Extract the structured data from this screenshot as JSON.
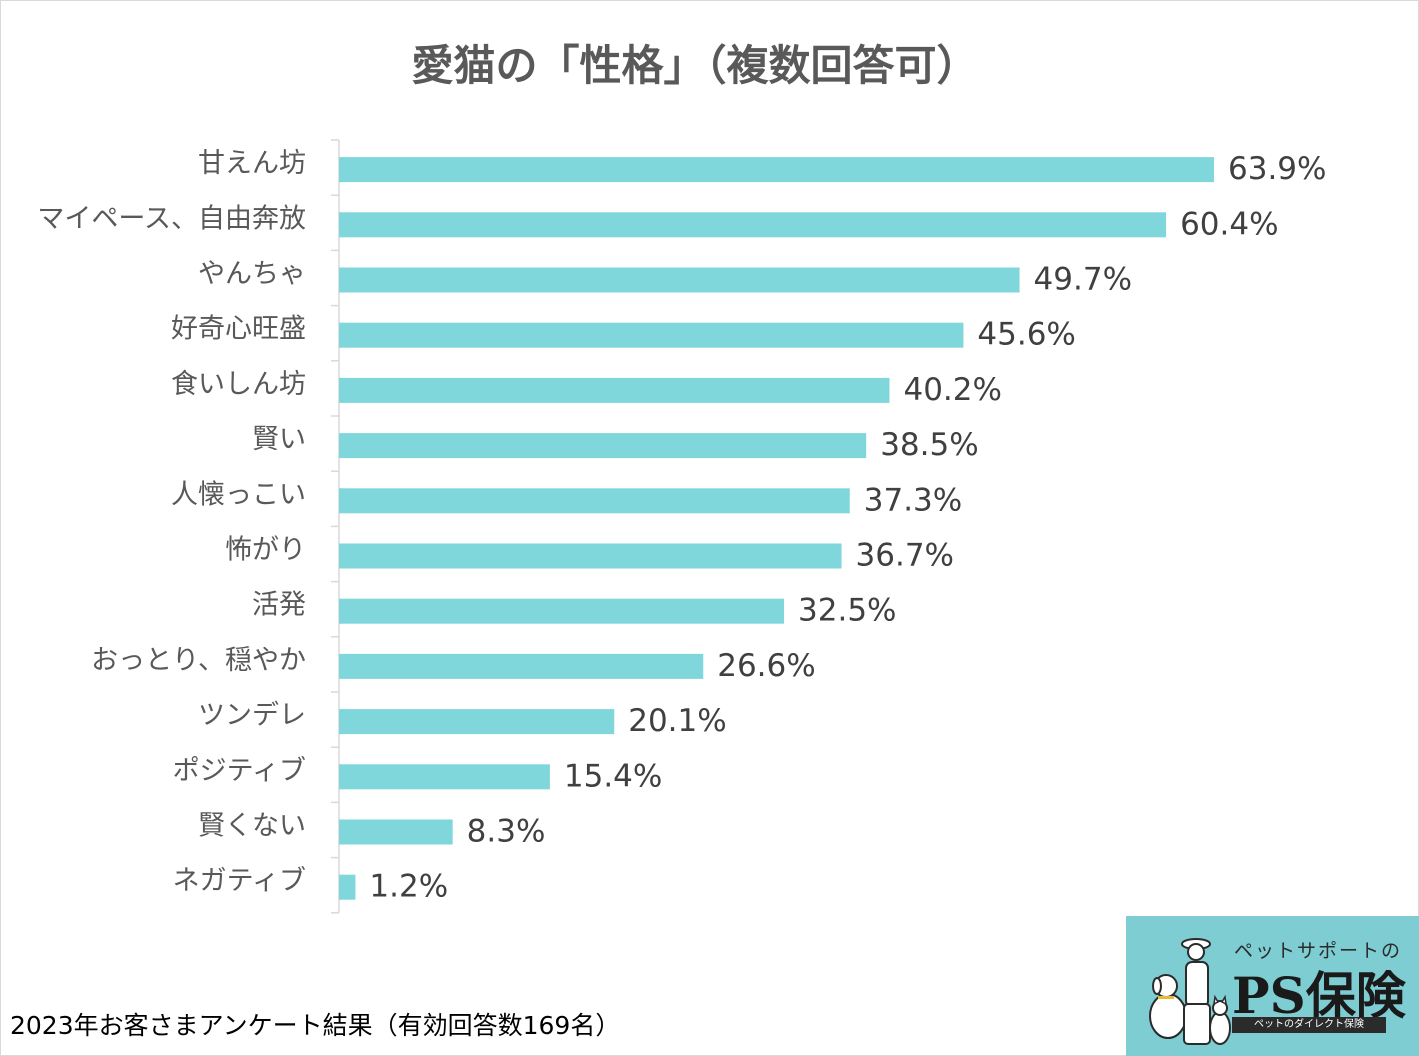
{
  "title": "愛猫の「性格」（複数回答可）",
  "footnote": "2023年お客さまアンケート結果（有効回答数169名）",
  "logo": {
    "tagline": "ペットサポートの",
    "brand": "PS保険",
    "sub": "ペットのダイレクト保険",
    "icon": "dog-and-cat-illustration"
  },
  "colors": {
    "bar": "#7fd6db",
    "axis": "#d9d9d9",
    "text": "#595959",
    "logo_bg": "#7dcdd3"
  },
  "chart_data": {
    "type": "bar",
    "orientation": "horizontal",
    "title": "愛猫の「性格」（複数回答可）",
    "categories": [
      "甘えん坊",
      "マイペース、自由奔放",
      "やんちゃ",
      "好奇心旺盛",
      "食いしん坊",
      "賢い",
      "人懐っこい",
      "怖がり",
      "活発",
      "おっとり、穏やか",
      "ツンデレ",
      "ポジティブ",
      "賢くない",
      "ネガティブ"
    ],
    "values": [
      63.9,
      60.4,
      49.7,
      45.6,
      40.2,
      38.5,
      37.3,
      36.7,
      32.5,
      26.6,
      20.1,
      15.4,
      8.3,
      1.2
    ],
    "value_labels": [
      "63.9%",
      "60.4%",
      "49.7%",
      "45.6%",
      "40.2%",
      "38.5%",
      "37.3%",
      "36.7%",
      "32.5%",
      "26.6%",
      "20.1%",
      "15.4%",
      "8.3%",
      "1.2%"
    ],
    "unit": "%",
    "xlim": [
      0,
      100
    ],
    "grid": false,
    "legend": "none"
  }
}
